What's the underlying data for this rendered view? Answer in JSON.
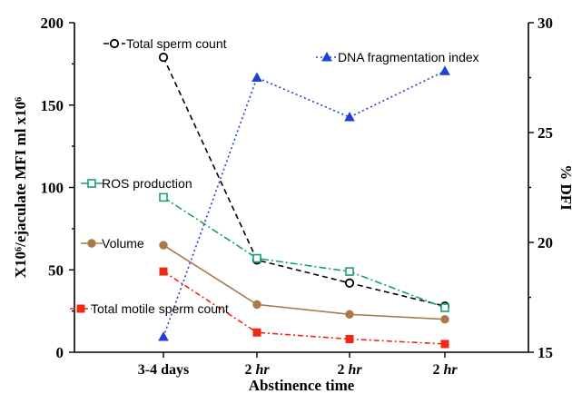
{
  "chart_data": {
    "type": "line",
    "title": "",
    "xlabel": "Abstinence time",
    "ylabel": "X10⁶/ejaculate MFI ml x10⁶",
    "y2label": "% DFI",
    "categories": [
      {
        "text": "3-4 days",
        "unit": ""
      },
      {
        "text": "2 ",
        "unit": "hr"
      },
      {
        "text": "2 ",
        "unit": "hr"
      },
      {
        "text": "2 ",
        "unit": "hr"
      }
    ],
    "ylim": [
      0,
      200
    ],
    "yticks": [
      "0",
      "50",
      "100",
      "150",
      "200"
    ],
    "y2lim": [
      15,
      30
    ],
    "y2ticks": [
      "15",
      "20",
      "25",
      "30"
    ],
    "grid": false,
    "series": [
      {
        "name": "Total sperm count",
        "axis": "left",
        "values": [
          179,
          56,
          42,
          28
        ],
        "color": "#000000",
        "dash": "6,4",
        "marker": "circle-open"
      },
      {
        "name": "DNA fragmentation index",
        "axis": "right",
        "values": [
          15.7,
          27.5,
          25.7,
          27.8
        ],
        "color": "#1f3fd9",
        "dash": "2,3",
        "marker": "triangle"
      },
      {
        "name": "ROS production",
        "axis": "left",
        "values": [
          94,
          57,
          49,
          27
        ],
        "color": "#1a9e6a",
        "dash": "8,3,2,3",
        "marker": "square-open"
      },
      {
        "name": "Volume",
        "axis": "left",
        "values": [
          65,
          29,
          23,
          20
        ],
        "color": "#a8794a",
        "dash": "",
        "marker": "circle-filled"
      },
      {
        "name": "Total motile sperm count",
        "axis": "left",
        "values": [
          49,
          12,
          8,
          5
        ],
        "color": "#ee2a12",
        "dash": "6,3,2,3",
        "marker": "square-filled"
      }
    ]
  }
}
